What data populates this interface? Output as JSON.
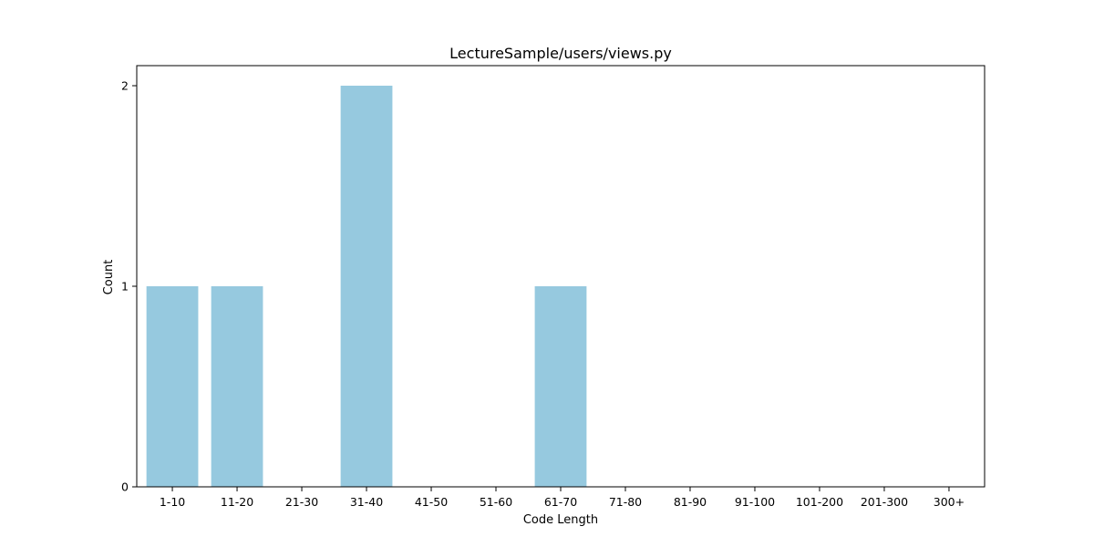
{
  "chart_data": {
    "type": "bar",
    "title": "LectureSample/users/views.py",
    "xlabel": "Code Length",
    "ylabel": "Count",
    "categories": [
      "1-10",
      "11-20",
      "21-30",
      "31-40",
      "41-50",
      "51-60",
      "61-70",
      "71-80",
      "81-90",
      "91-100",
      "101-200",
      "201-300",
      "300+"
    ],
    "values": [
      1,
      1,
      0,
      2,
      0,
      0,
      1,
      0,
      0,
      0,
      0,
      0,
      0
    ],
    "ylim": [
      0,
      2.1
    ],
    "yticks": [
      0,
      1,
      2
    ],
    "grid": false,
    "legend": "none",
    "colors": {
      "bar": "#96c9df",
      "axis": "#000000",
      "background": "#ffffff"
    }
  }
}
